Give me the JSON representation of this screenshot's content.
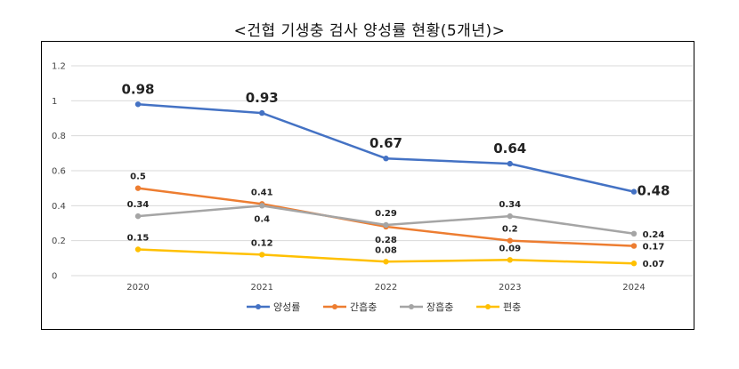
{
  "title": "<건협 기생충 검사 양성률 현황(5개년)>",
  "chart_data": {
    "type": "line",
    "title": "<건협 기생충 검사 양성률 현황(5개년)>",
    "x": [
      "2020",
      "2021",
      "2022",
      "2023",
      "2024"
    ],
    "ylim": [
      0,
      1.2
    ],
    "yticks": [
      "0",
      "0.2",
      "0.4",
      "0.6",
      "0.8",
      "1",
      "1.2"
    ],
    "grid": true,
    "legend_position": "bottom",
    "series": [
      {
        "name": "양성률",
        "color": "#4472C4",
        "values": [
          0.98,
          0.93,
          0.67,
          0.64,
          0.48
        ],
        "labels": [
          "0.98",
          "0.93",
          "0.67",
          "0.64",
          "0.48"
        ]
      },
      {
        "name": "간흡충",
        "color": "#ED7D31",
        "values": [
          0.5,
          0.41,
          0.28,
          0.2,
          0.17
        ],
        "labels": [
          "0.5",
          "0.41",
          "0.28",
          "0.2",
          "0.17"
        ]
      },
      {
        "name": "장흡충",
        "color": "#A5A5A5",
        "values": [
          0.34,
          0.4,
          0.29,
          0.34,
          0.24
        ],
        "labels": [
          "0.34",
          "0.4",
          "0.29",
          "0.34",
          "0.24"
        ]
      },
      {
        "name": "편충",
        "color": "#FFC000",
        "values": [
          0.15,
          0.12,
          0.08,
          0.09,
          0.07
        ],
        "labels": [
          "0.15",
          "0.12",
          "0.08",
          "0.09",
          "0.07"
        ]
      }
    ]
  }
}
